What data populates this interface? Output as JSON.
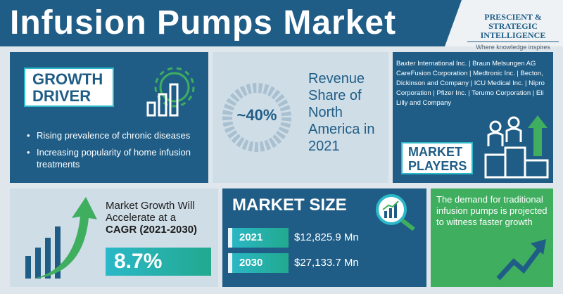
{
  "header": {
    "title": "Infusion Pumps Market",
    "logo_line1": "PRESCIENT & STRATEGIC",
    "logo_line2": "INTELLIGENCE",
    "logo_tagline": "Where knowledge inspires strategy"
  },
  "growth_driver": {
    "label_line1": "GROWTH",
    "label_line2": "DRIVER",
    "icon": "gear-bar-chart-icon",
    "items": [
      "Rising prevalence of chronic diseases",
      "Increasing popularity of home infusion treatments"
    ]
  },
  "revenue_share": {
    "value": "~40%",
    "text": "Revenue Share of North America in 2021"
  },
  "market_players": {
    "list": "Baxter International Inc. | Braun Melsungen AG CareFusion Corporation | Medtronic Inc. | Becton, Dickinson and Company | ICU Medical Inc. | Nipro Corporation | Pfizer Inc. | Terumo Corporation | Eli Lilly and Company",
    "label_line1": "MARKET",
    "label_line2": "PLAYERS",
    "icon": "podium-people-icon"
  },
  "cagr": {
    "text": "Market Growth Will Accelerate at a",
    "bold": "CAGR (2021-2030)",
    "value": "8.7%",
    "icon": "growth-bars-arrow-icon"
  },
  "market_size": {
    "title": "MARKET SIZE",
    "icon": "magnifier-chart-icon",
    "rows": [
      {
        "year": "2021",
        "value": "$12,825.9 Mn"
      },
      {
        "year": "2030",
        "value": "$27,133.7 Mn"
      }
    ]
  },
  "demand": {
    "text": "The demand for traditional infusion pumps is projected to witness faster growth",
    "icon": "trend-arrow-icon"
  },
  "colors": {
    "primary": "#1f5d86",
    "accent": "#2bb8c8",
    "green": "#3fae5f",
    "panel_light": "#cfdde7"
  }
}
